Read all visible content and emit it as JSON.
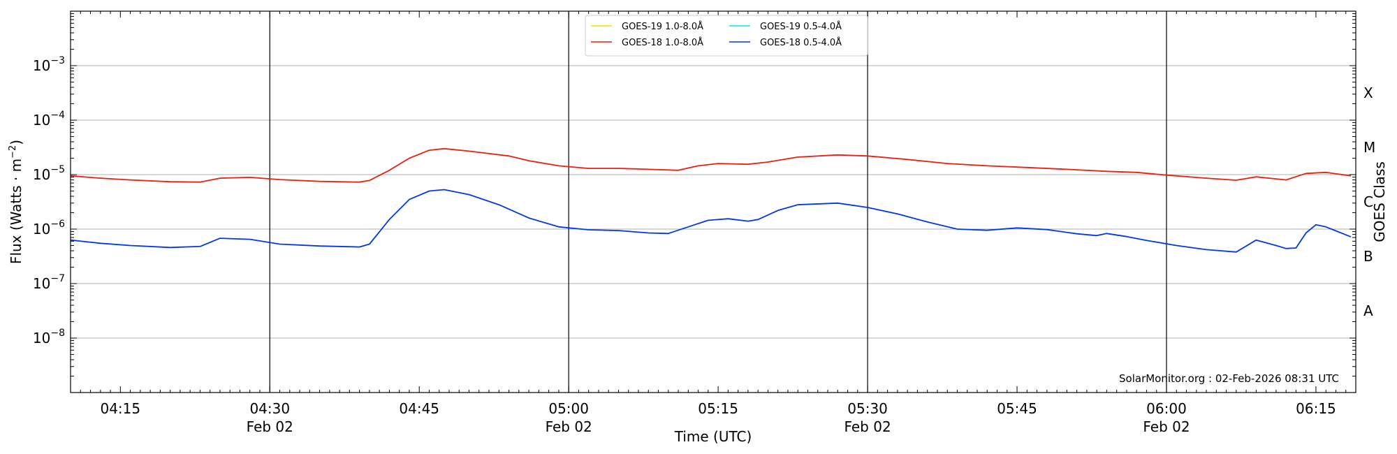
{
  "chart_data": {
    "type": "line",
    "xlabel": "Time (UTC)",
    "ylabel": "Flux (Watts · m",
    "ylabel_sup": "−2",
    "ylabel_close": ")",
    "y2label": "GOES Class",
    "y_scale": "log",
    "xlim": [
      "04:10",
      "06:19"
    ],
    "ylim": [
      1e-09,
      0.01
    ],
    "grid": "horizontal at decades",
    "legend_position": "top-center",
    "credit": "SolarMonitor.org : 02-Feb-2026 08:31 UTC",
    "x_ticks": [
      {
        "t": "04:15",
        "label": "04:15",
        "date": ""
      },
      {
        "t": "04:30",
        "label": "04:30",
        "date": "Feb 02"
      },
      {
        "t": "04:45",
        "label": "04:45",
        "date": ""
      },
      {
        "t": "05:00",
        "label": "05:00",
        "date": "Feb 02"
      },
      {
        "t": "05:15",
        "label": "05:15",
        "date": ""
      },
      {
        "t": "05:30",
        "label": "05:30",
        "date": "Feb 02"
      },
      {
        "t": "05:45",
        "label": "05:45",
        "date": ""
      },
      {
        "t": "06:00",
        "label": "06:00",
        "date": "Feb 02"
      },
      {
        "t": "06:15",
        "label": "06:15",
        "date": ""
      }
    ],
    "vlines": [
      "04:30",
      "05:00",
      "05:30",
      "06:00"
    ],
    "y_ticks": [
      {
        "exp": -8,
        "label": "10",
        "sup": "−8"
      },
      {
        "exp": -7,
        "label": "10",
        "sup": "−7"
      },
      {
        "exp": -6,
        "label": "10",
        "sup": "−6"
      },
      {
        "exp": -5,
        "label": "10",
        "sup": "−5"
      },
      {
        "exp": -4,
        "label": "10",
        "sup": "−4"
      },
      {
        "exp": -3,
        "label": "10",
        "sup": "−3"
      }
    ],
    "goes_classes": [
      {
        "label": "A",
        "exp": -7.5
      },
      {
        "label": "B",
        "exp": -6.5
      },
      {
        "label": "C",
        "exp": -5.5
      },
      {
        "label": "M",
        "exp": -4.5
      },
      {
        "label": "X",
        "exp": -3.5
      }
    ],
    "series": [
      {
        "name": "GOES-19 1.0-8.0Å",
        "color": "#ffd700",
        "points": []
      },
      {
        "name": "GOES-19 0.5-4.0Å",
        "color": "#00e5ee",
        "points": []
      },
      {
        "name": "GOES-18 1.0-8.0Å",
        "color": "#e8200c",
        "points": [
          [
            "04:10",
            9.5e-06
          ],
          [
            "04:13",
            8.6e-06
          ],
          [
            "04:16",
            8e-06
          ],
          [
            "04:20",
            7.4e-06
          ],
          [
            "04:23",
            7.3e-06
          ],
          [
            "04:25",
            8.6e-06
          ],
          [
            "04:28",
            8.9e-06
          ],
          [
            "04:31",
            8.1e-06
          ],
          [
            "04:35",
            7.5e-06
          ],
          [
            "04:39",
            7.3e-06
          ],
          [
            "04:40",
            7.8e-06
          ],
          [
            "04:42",
            1.2e-05
          ],
          [
            "04:44",
            2e-05
          ],
          [
            "04:46",
            2.8e-05
          ],
          [
            "04:47.5",
            3e-05
          ],
          [
            "04:50",
            2.7e-05
          ],
          [
            "04:54",
            2.2e-05
          ],
          [
            "04:56",
            1.8e-05
          ],
          [
            "04:59",
            1.45e-05
          ],
          [
            "05:02",
            1.3e-05
          ],
          [
            "05:05",
            1.3e-05
          ],
          [
            "05:08",
            1.25e-05
          ],
          [
            "05:11",
            1.2e-05
          ],
          [
            "05:13",
            1.45e-05
          ],
          [
            "05:15",
            1.6e-05
          ],
          [
            "05:18",
            1.55e-05
          ],
          [
            "05:20",
            1.7e-05
          ],
          [
            "05:23",
            2.1e-05
          ],
          [
            "05:27",
            2.3e-05
          ],
          [
            "05:30",
            2.2e-05
          ],
          [
            "05:34",
            1.9e-05
          ],
          [
            "05:38",
            1.6e-05
          ],
          [
            "05:42",
            1.45e-05
          ],
          [
            "05:46",
            1.35e-05
          ],
          [
            "05:50",
            1.25e-05
          ],
          [
            "05:54",
            1.15e-05
          ],
          [
            "05:57",
            1.1e-05
          ],
          [
            "06:00",
            9.8e-06
          ],
          [
            "06:04",
            8.6e-06
          ],
          [
            "06:07",
            7.9e-06
          ],
          [
            "06:09",
            9.1e-06
          ],
          [
            "06:12",
            8e-06
          ],
          [
            "06:14",
            1.05e-05
          ],
          [
            "06:16",
            1.1e-05
          ],
          [
            "06:18.5",
            9.5e-06
          ]
        ]
      },
      {
        "name": "GOES-18 0.5-4.0Å",
        "color": "#0038e8",
        "points": [
          [
            "04:10",
            6.3e-07
          ],
          [
            "04:13",
            5.5e-07
          ],
          [
            "04:16",
            5e-07
          ],
          [
            "04:20",
            4.6e-07
          ],
          [
            "04:23",
            4.8e-07
          ],
          [
            "04:25",
            6.8e-07
          ],
          [
            "04:28",
            6.5e-07
          ],
          [
            "04:31",
            5.3e-07
          ],
          [
            "04:35",
            4.9e-07
          ],
          [
            "04:39",
            4.7e-07
          ],
          [
            "04:40",
            5.3e-07
          ],
          [
            "04:42",
            1.5e-06
          ],
          [
            "04:44",
            3.5e-06
          ],
          [
            "04:46",
            5e-06
          ],
          [
            "04:47.5",
            5.3e-06
          ],
          [
            "04:50",
            4.3e-06
          ],
          [
            "04:53",
            2.8e-06
          ],
          [
            "04:56",
            1.6e-06
          ],
          [
            "04:59",
            1.1e-06
          ],
          [
            "05:02",
            9.7e-07
          ],
          [
            "05:05",
            9.4e-07
          ],
          [
            "05:08",
            8.5e-07
          ],
          [
            "05:10",
            8.3e-07
          ],
          [
            "05:12",
            1.1e-06
          ],
          [
            "05:14",
            1.45e-06
          ],
          [
            "05:16",
            1.55e-06
          ],
          [
            "05:18",
            1.4e-06
          ],
          [
            "05:19",
            1.5e-06
          ],
          [
            "05:21",
            2.2e-06
          ],
          [
            "05:23",
            2.8e-06
          ],
          [
            "05:27",
            3e-06
          ],
          [
            "05:30",
            2.5e-06
          ],
          [
            "05:33",
            1.9e-06
          ],
          [
            "05:36",
            1.35e-06
          ],
          [
            "05:39",
            1e-06
          ],
          [
            "05:42",
            9.5e-07
          ],
          [
            "05:45",
            1.05e-06
          ],
          [
            "05:48",
            9.8e-07
          ],
          [
            "05:51",
            8.2e-07
          ],
          [
            "05:53",
            7.6e-07
          ],
          [
            "05:54",
            8.3e-07
          ],
          [
            "05:56",
            7.3e-07
          ],
          [
            "05:58",
            6.2e-07
          ],
          [
            "06:01",
            5e-07
          ],
          [
            "06:04",
            4.2e-07
          ],
          [
            "06:07",
            3.8e-07
          ],
          [
            "06:09",
            6.3e-07
          ],
          [
            "06:11",
            5e-07
          ],
          [
            "06:12",
            4.4e-07
          ],
          [
            "06:13",
            4.5e-07
          ],
          [
            "06:14",
            8.5e-07
          ],
          [
            "06:15",
            1.2e-06
          ],
          [
            "06:16",
            1.1e-06
          ],
          [
            "06:18.5",
            7.2e-07
          ]
        ]
      }
    ]
  }
}
